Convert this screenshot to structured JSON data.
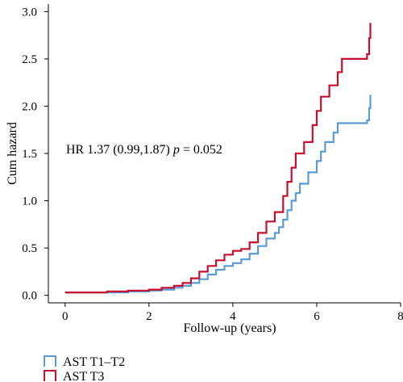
{
  "chart_data": {
    "type": "line",
    "step": true,
    "xlabel": "Follow-up (years)",
    "ylabel": "Cum hazard",
    "xlim": [
      -0.4,
      8
    ],
    "ylim": [
      -0.08,
      3.08
    ],
    "xticks": [
      0,
      2,
      4,
      6,
      8
    ],
    "yticks": [
      0.0,
      0.5,
      1.0,
      1.5,
      2.0,
      2.5,
      3.0
    ],
    "ytick_labels": [
      "0.0",
      "0.5",
      "1.0",
      "1.5",
      "2.0",
      "2.5",
      "3.0"
    ],
    "grid": false,
    "legend_position": "bottom-left",
    "annotation": {
      "prefix": "HR 1.37 (0.99,1.87) ",
      "p_symbol": "p",
      "suffix": " = 0.052"
    },
    "series": [
      {
        "name": "AST T1–T2",
        "color": "#5b9bd5",
        "points": [
          [
            0,
            0.03
          ],
          [
            1.0,
            0.03
          ],
          [
            1.5,
            0.04
          ],
          [
            2.0,
            0.05
          ],
          [
            2.3,
            0.06
          ],
          [
            2.6,
            0.08
          ],
          [
            2.8,
            0.1
          ],
          [
            3.0,
            0.13
          ],
          [
            3.2,
            0.17
          ],
          [
            3.4,
            0.22
          ],
          [
            3.6,
            0.27
          ],
          [
            3.8,
            0.31
          ],
          [
            4.0,
            0.34
          ],
          [
            4.2,
            0.38
          ],
          [
            4.4,
            0.44
          ],
          [
            4.6,
            0.52
          ],
          [
            4.8,
            0.6
          ],
          [
            5.0,
            0.66
          ],
          [
            5.1,
            0.72
          ],
          [
            5.2,
            0.8
          ],
          [
            5.3,
            0.9
          ],
          [
            5.4,
            1.0
          ],
          [
            5.5,
            1.08
          ],
          [
            5.6,
            1.18
          ],
          [
            5.8,
            1.3
          ],
          [
            6.0,
            1.42
          ],
          [
            6.1,
            1.52
          ],
          [
            6.2,
            1.62
          ],
          [
            6.4,
            1.72
          ],
          [
            6.5,
            1.82
          ],
          [
            7.2,
            1.85
          ],
          [
            7.25,
            1.98
          ],
          [
            7.28,
            2.12
          ]
        ]
      },
      {
        "name": "AST T3",
        "color": "#c8102e",
        "points": [
          [
            0,
            0.03
          ],
          [
            1.0,
            0.04
          ],
          [
            1.5,
            0.05
          ],
          [
            2.0,
            0.06
          ],
          [
            2.3,
            0.08
          ],
          [
            2.6,
            0.1
          ],
          [
            2.8,
            0.13
          ],
          [
            3.0,
            0.18
          ],
          [
            3.2,
            0.25
          ],
          [
            3.4,
            0.31
          ],
          [
            3.6,
            0.37
          ],
          [
            3.8,
            0.43
          ],
          [
            4.0,
            0.47
          ],
          [
            4.2,
            0.49
          ],
          [
            4.4,
            0.56
          ],
          [
            4.6,
            0.66
          ],
          [
            4.8,
            0.78
          ],
          [
            5.0,
            0.88
          ],
          [
            5.2,
            1.05
          ],
          [
            5.3,
            1.2
          ],
          [
            5.4,
            1.35
          ],
          [
            5.5,
            1.5
          ],
          [
            5.7,
            1.62
          ],
          [
            5.9,
            1.8
          ],
          [
            6.0,
            1.95
          ],
          [
            6.1,
            2.1
          ],
          [
            6.3,
            2.22
          ],
          [
            6.5,
            2.36
          ],
          [
            6.6,
            2.5
          ],
          [
            7.2,
            2.55
          ],
          [
            7.25,
            2.72
          ],
          [
            7.28,
            2.88
          ]
        ]
      }
    ]
  }
}
